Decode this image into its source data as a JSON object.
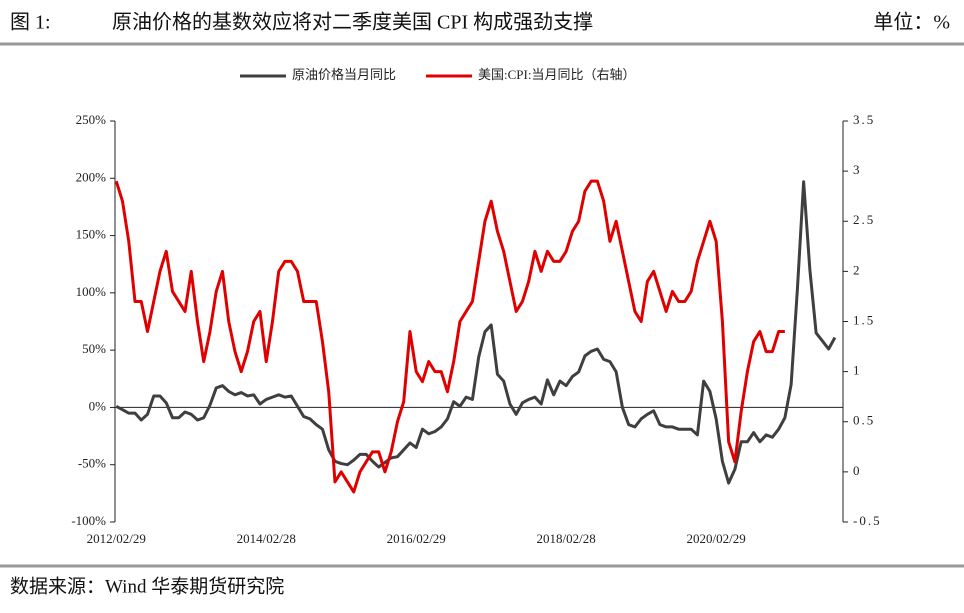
{
  "header": {
    "label": "图 1:",
    "unit": "单位：%"
  },
  "chart_data": {
    "type": "line",
    "title": "原油价格的基数效应将对二季度美国 CPI 构成强劲支撑",
    "categories": [
      "2012/02/29",
      null,
      null,
      null,
      null,
      null,
      null,
      null,
      null,
      null,
      null,
      null,
      null,
      null,
      null,
      null,
      null,
      null,
      null,
      null,
      null,
      null,
      null,
      null,
      "2014/02/28",
      null,
      null,
      null,
      null,
      null,
      null,
      null,
      null,
      null,
      null,
      null,
      null,
      null,
      null,
      null,
      null,
      null,
      null,
      null,
      null,
      null,
      null,
      null,
      "2016/02/29",
      null,
      null,
      null,
      null,
      null,
      null,
      null,
      null,
      null,
      null,
      null,
      null,
      null,
      null,
      null,
      null,
      null,
      null,
      null,
      null,
      null,
      null,
      null,
      "2018/02/28",
      null,
      null,
      null,
      null,
      null,
      null,
      null,
      null,
      null,
      null,
      null,
      null,
      null,
      null,
      null,
      null,
      null,
      null,
      null,
      null,
      null,
      null,
      null,
      "2020/02/29",
      null,
      null,
      null,
      null,
      null,
      null,
      null,
      null,
      null,
      null,
      null,
      null,
      null,
      null,
      null,
      null,
      null,
      null,
      null
    ],
    "series": [
      {
        "name": "原油价格当月同比",
        "color": "#3f3f3f",
        "values": [
          1,
          -2,
          -5,
          -5,
          -11,
          -6,
          10,
          10,
          4,
          -9,
          -9,
          -4,
          -6,
          -11,
          -9,
          2,
          17,
          19,
          14,
          11,
          13,
          10,
          11,
          3,
          7,
          9,
          11,
          9,
          10,
          1,
          -8,
          -10,
          -15,
          -19,
          -37,
          -47,
          -49,
          -50,
          -46,
          -41,
          -41,
          -47,
          -52,
          -48,
          -44,
          -43,
          -37,
          -31,
          -35,
          -19,
          -23,
          -21,
          -17,
          -10,
          5,
          1,
          9,
          7,
          44,
          66,
          72,
          29,
          23,
          3,
          -6,
          4,
          7,
          9,
          3,
          24,
          11,
          23,
          19,
          27,
          31,
          45,
          49,
          51,
          42,
          40,
          31,
          0,
          -15,
          -17,
          -10,
          -6,
          -3,
          -15,
          -17,
          -17,
          -19,
          -19,
          -19,
          -24,
          23,
          14,
          -10,
          -47,
          -66,
          -54,
          -30,
          -30,
          -22,
          -30,
          -24,
          -26,
          -19,
          -9,
          20,
          103,
          197,
          120,
          65,
          58,
          51,
          61
        ]
      },
      {
        "name": "美国:CPI:当月同比（右轴）",
        "color": "#e00000",
        "axis": "y2",
        "values": [
          2.9,
          2.7,
          2.3,
          1.7,
          1.7,
          1.4,
          1.7,
          2.0,
          2.2,
          1.8,
          1.7,
          1.6,
          2.0,
          1.5,
          1.1,
          1.4,
          1.8,
          2.0,
          1.5,
          1.2,
          1.0,
          1.2,
          1.5,
          1.6,
          1.1,
          1.5,
          2.0,
          2.1,
          2.1,
          2.0,
          1.7,
          1.7,
          1.7,
          1.3,
          0.8,
          -0.1,
          0.0,
          -0.1,
          -0.2,
          0.0,
          0.1,
          0.2,
          0.2,
          0.0,
          0.2,
          0.5,
          0.7,
          1.4,
          1.0,
          0.9,
          1.1,
          1.0,
          1.0,
          0.8,
          1.1,
          1.5,
          1.6,
          1.7,
          2.1,
          2.5,
          2.7,
          2.4,
          2.2,
          1.9,
          1.6,
          1.7,
          1.9,
          2.2,
          2.0,
          2.2,
          2.1,
          2.1,
          2.2,
          2.4,
          2.5,
          2.8,
          2.9,
          2.9,
          2.7,
          2.3,
          2.5,
          2.2,
          1.9,
          1.6,
          1.5,
          1.9,
          2.0,
          1.8,
          1.6,
          1.8,
          1.7,
          1.7,
          1.8,
          2.1,
          2.3,
          2.5,
          2.3,
          1.5,
          0.3,
          0.1,
          0.6,
          1.0,
          1.3,
          1.4,
          1.2,
          1.2,
          1.4,
          1.4,
          null,
          null,
          null,
          null,
          null,
          null,
          null,
          null
        ]
      }
    ],
    "ylim": [
      -100,
      250
    ],
    "yticks": [
      {
        "value": -100,
        "label": "-100%"
      },
      {
        "value": -50,
        "label": "-50%"
      },
      {
        "value": 0,
        "label": "0%"
      },
      {
        "value": 50,
        "label": "50%"
      },
      {
        "value": 100,
        "label": "100%"
      },
      {
        "value": 150,
        "label": "150%"
      },
      {
        "value": 200,
        "label": "200%"
      },
      {
        "value": 250,
        "label": "250%"
      }
    ],
    "y2lim": [
      -0.5,
      3.5
    ],
    "y2ticks": [
      -0.5,
      0,
      0.5,
      1,
      1.5,
      2,
      2.5,
      3,
      3.5
    ],
    "grid": false,
    "legend": "top"
  },
  "footer": {
    "source": "数据来源：Wind 华泰期货研究院"
  }
}
